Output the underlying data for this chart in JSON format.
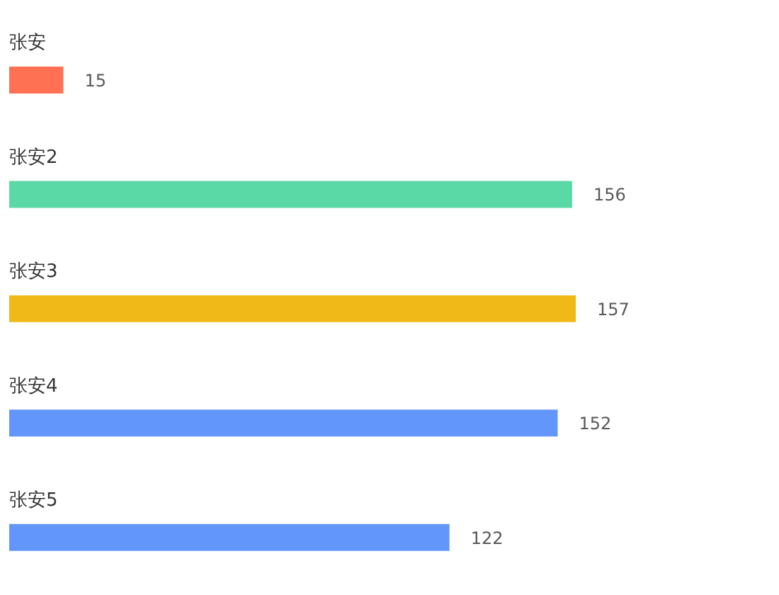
{
  "chart_data": {
    "type": "bar",
    "orientation": "horizontal",
    "categories": [
      "张安",
      "张安2",
      "张安3",
      "张安4",
      "张安5"
    ],
    "values": [
      15,
      156,
      157,
      152,
      122
    ],
    "colors": [
      "#ff7152",
      "#5ad8a6",
      "#f0b917",
      "#6396fa",
      "#6396fa"
    ],
    "data_labels": true
  }
}
